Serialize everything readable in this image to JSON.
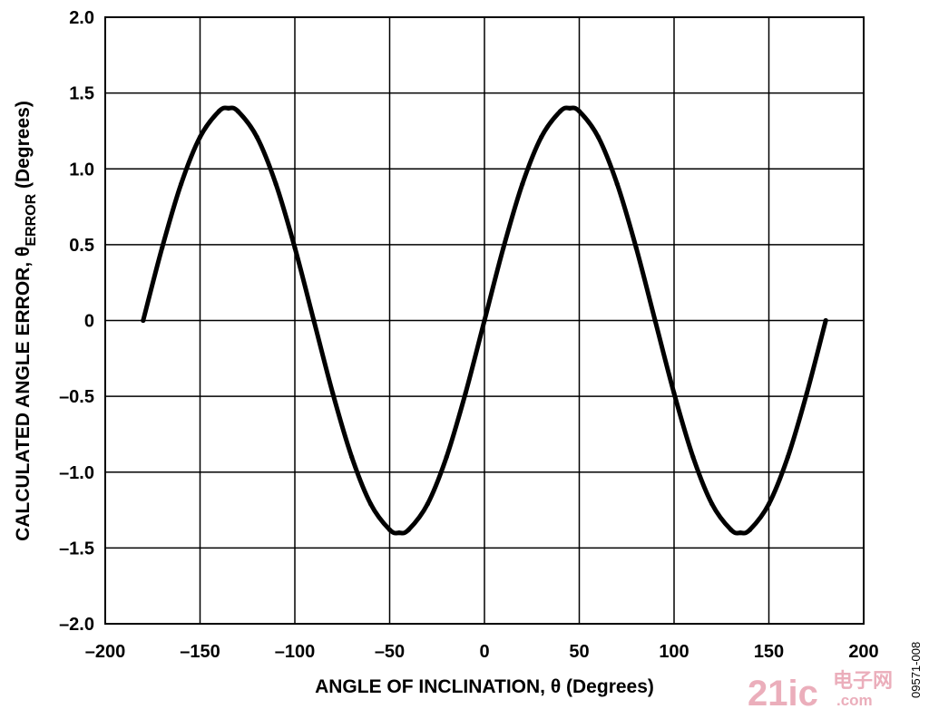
{
  "chart_data": {
    "type": "line",
    "title": "",
    "xlabel": "ANGLE OF INCLINATION, θ (Degrees)",
    "ylabel_main": "CALCULATED ANGLE ERROR, θ",
    "ylabel_sub": "ERROR",
    "ylabel_tail": " (Degrees)",
    "xlim": [
      -200,
      200
    ],
    "ylim": [
      -2.0,
      2.0
    ],
    "xticks": [
      -200,
      -150,
      -100,
      -50,
      0,
      50,
      100,
      150,
      200
    ],
    "xtick_labels": [
      "–200",
      "–150",
      "–100",
      "–50",
      "0",
      "50",
      "100",
      "150",
      "200"
    ],
    "yticks": [
      2.0,
      1.5,
      1.0,
      0.5,
      0,
      -0.5,
      -1.0,
      -1.5,
      -2.0
    ],
    "ytick_labels": [
      "2.0",
      "1.5",
      "1.0",
      "0.5",
      "0",
      "–0.5",
      "–1.0",
      "–1.5",
      "–2.0"
    ],
    "grid": true,
    "line_color": "#000000",
    "series": [
      {
        "x": [
          -180,
          -170,
          -160,
          -150,
          -140,
          -135,
          -130,
          -120,
          -110,
          -100,
          -90,
          -80,
          -70,
          -60,
          -50,
          -45,
          -40,
          -30,
          -20,
          -10,
          0,
          10,
          20,
          30,
          40,
          45,
          50,
          60,
          70,
          80,
          90,
          100,
          110,
          120,
          130,
          135,
          140,
          150,
          160,
          170,
          180
        ],
        "values": [
          0,
          0.48,
          0.9,
          1.21,
          1.38,
          1.4,
          1.38,
          1.21,
          0.9,
          0.48,
          0,
          -0.48,
          -0.9,
          -1.21,
          -1.38,
          -1.4,
          -1.38,
          -1.21,
          -0.9,
          -0.48,
          0,
          0.48,
          0.9,
          1.21,
          1.38,
          1.4,
          1.38,
          1.21,
          0.9,
          0.48,
          0,
          -0.48,
          -0.9,
          -1.21,
          -1.38,
          -1.4,
          -1.38,
          -1.21,
          -0.9,
          -0.48,
          0
        ]
      }
    ]
  },
  "figure_id": "09571-008",
  "watermark": {
    "main": "21ic",
    "cn": "电子网",
    "dot": ".com",
    "color": "#e8a0b0"
  }
}
